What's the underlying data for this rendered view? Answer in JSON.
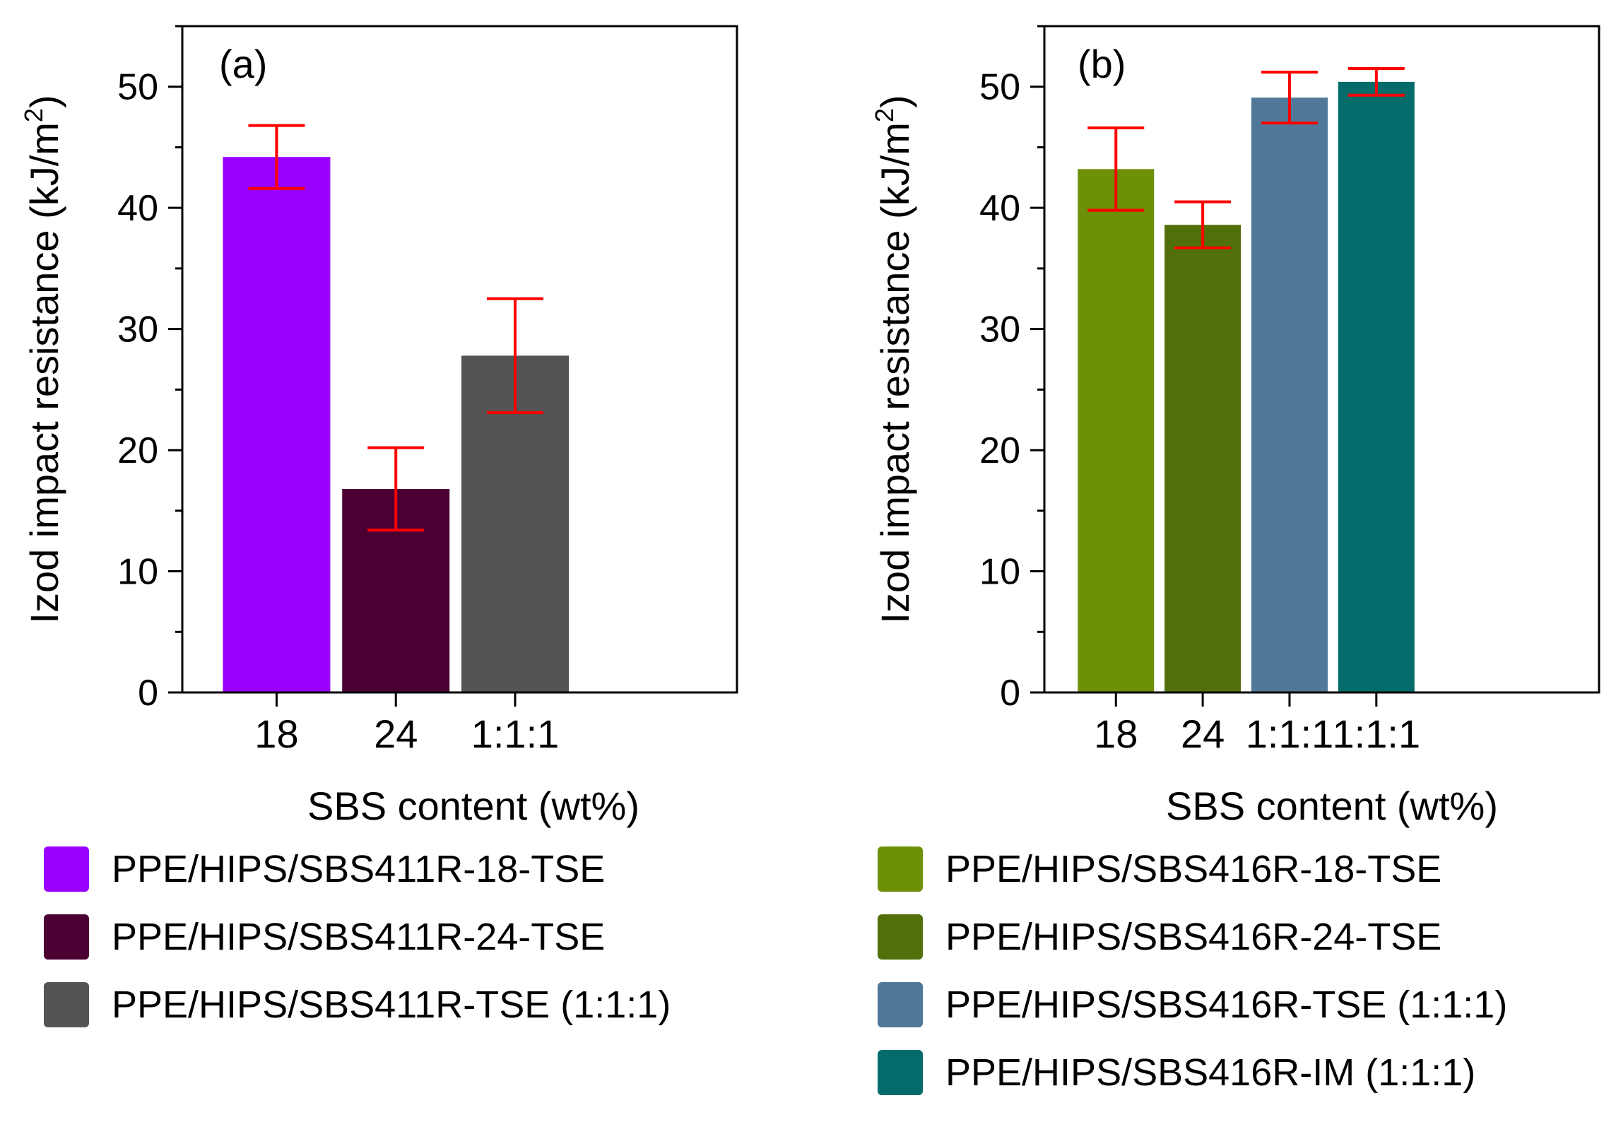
{
  "chart_data": [
    {
      "type": "bar",
      "panel_label": "(a)",
      "categories": [
        "18",
        "24",
        "1:1:1"
      ],
      "values": [
        44.2,
        16.8,
        27.8
      ],
      "errors": [
        2.6,
        3.4,
        4.7
      ],
      "colors": [
        "#9900ff",
        "#4b0033",
        "#545454"
      ],
      "ylabel_main": "Izod impact resistance (kJ/m",
      "ylabel_sup": "2",
      "ylabel_close": ")",
      "xlabel": "SBS content (wt%)",
      "ylim": [
        0,
        55
      ],
      "yticks": [
        0,
        10,
        20,
        30,
        40,
        50
      ],
      "error_color": "#ff0000",
      "legend": [
        {
          "label": "PPE/HIPS/SBS411R-18-TSE",
          "color": "#9900ff"
        },
        {
          "label": "PPE/HIPS/SBS411R-24-TSE",
          "color": "#4b0033"
        },
        {
          "label": "PPE/HIPS/SBS411R-TSE (1:1:1)",
          "color": "#545454"
        }
      ]
    },
    {
      "type": "bar",
      "panel_label": "(b)",
      "categories": [
        "18",
        "24",
        "1:1:1",
        "1:1:1"
      ],
      "values": [
        43.2,
        38.6,
        49.1,
        50.4
      ],
      "errors": [
        3.4,
        1.9,
        2.1,
        1.1
      ],
      "colors": [
        "#6e8f08",
        "#52700a",
        "#4f7899",
        "#046b6b"
      ],
      "ylabel_main": "Izod impact resistance (kJ/m",
      "ylabel_sup": "2",
      "ylabel_close": ")",
      "xlabel": "SBS content (wt%)",
      "ylim": [
        0,
        55
      ],
      "yticks": [
        0,
        10,
        20,
        30,
        40,
        50
      ],
      "error_color": "#ff0000",
      "legend": [
        {
          "label": "PPE/HIPS/SBS416R-18-TSE",
          "color": "#6e8f08"
        },
        {
          "label": "PPE/HIPS/SBS416R-24-TSE",
          "color": "#52700a"
        },
        {
          "label": "PPE/HIPS/SBS416R-TSE (1:1:1)",
          "color": "#4f7899"
        },
        {
          "label": "PPE/HIPS/SBS416R-IM (1:1:1)",
          "color": "#046b6b"
        }
      ]
    }
  ]
}
